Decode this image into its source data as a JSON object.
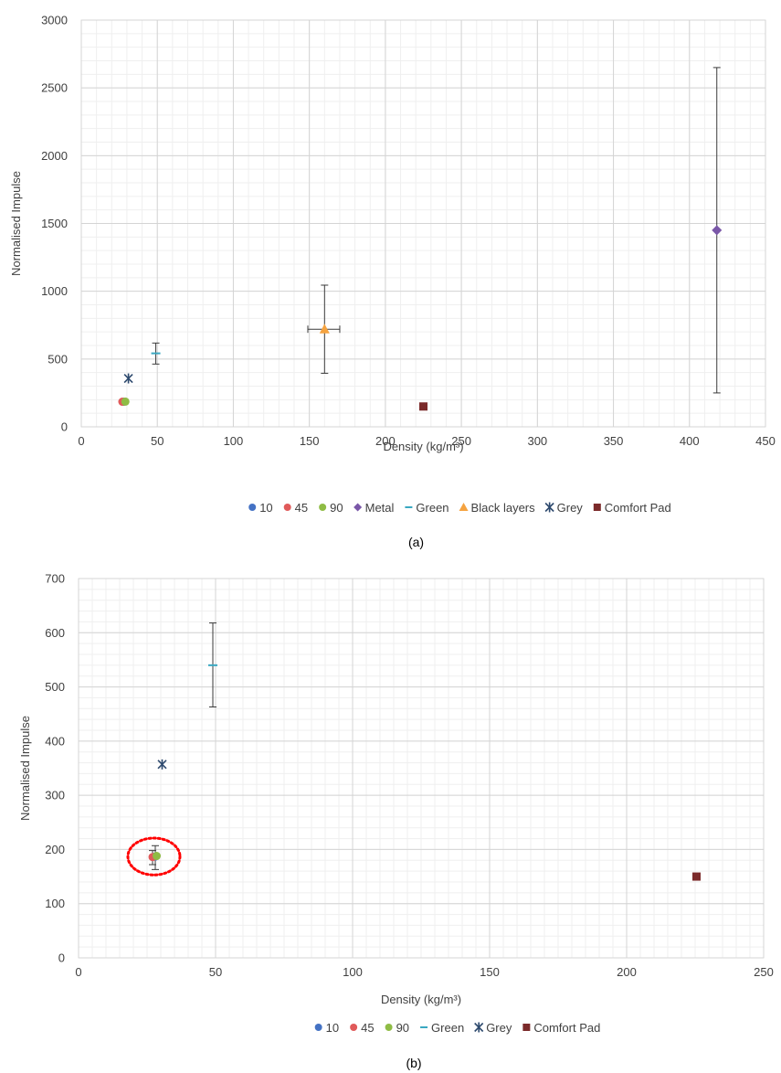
{
  "chart_data": [
    {
      "type": "scatter",
      "title": "",
      "caption": "(a)",
      "xlabel": "Density (kg/m³)",
      "ylabel": "Normalised Impulse",
      "xlim": [
        0,
        450
      ],
      "ylim": [
        0,
        3000
      ],
      "xticks": [
        0,
        50,
        100,
        150,
        200,
        250,
        300,
        350,
        400,
        450
      ],
      "yticks": [
        0,
        500,
        1000,
        1500,
        2000,
        2500,
        3000
      ],
      "grid": true,
      "legend_position": "bottom",
      "series": [
        {
          "name": "10",
          "marker": "circle",
          "color": "#4472c4",
          "points": [
            {
              "x": 28,
              "y": 185
            }
          ]
        },
        {
          "name": "45",
          "marker": "circle",
          "color": "#e05a5a",
          "points": [
            {
              "x": 27,
              "y": 185
            }
          ]
        },
        {
          "name": "90",
          "marker": "circle",
          "color": "#8fbc45",
          "points": [
            {
              "x": 29,
              "y": 186
            }
          ]
        },
        {
          "name": "Metal",
          "marker": "diamond",
          "color": "#7a57a8",
          "points": [
            {
              "x": 418,
              "y": 1450,
              "y_low": 250,
              "y_high": 2650
            }
          ]
        },
        {
          "name": "Green",
          "marker": "dash",
          "color": "#3aa8c1",
          "points": [
            {
              "x": 49,
              "y": 542,
              "y_low": 463,
              "y_high": 618
            }
          ]
        },
        {
          "name": "Black layers",
          "marker": "triangle",
          "color": "#f5a340",
          "points": [
            {
              "x": 160,
              "y": 720,
              "y_low": 395,
              "y_high": 1045,
              "x_low": 149,
              "x_high": 170
            }
          ]
        },
        {
          "name": "Grey",
          "marker": "star",
          "color": "#2e4a6e",
          "points": [
            {
              "x": 31,
              "y": 357
            }
          ]
        },
        {
          "name": "Comfort Pad",
          "marker": "square",
          "color": "#7b2a2a",
          "points": [
            {
              "x": 225,
              "y": 150
            }
          ]
        }
      ]
    },
    {
      "type": "scatter",
      "title": "",
      "caption": "(b)",
      "xlabel": "Density (kg/m³)",
      "ylabel": "Normalised Impulse",
      "xlim": [
        0,
        250
      ],
      "ylim": [
        0,
        700
      ],
      "xticks": [
        0,
        50,
        100,
        150,
        200,
        250
      ],
      "yticks": [
        0,
        100,
        200,
        300,
        400,
        500,
        600,
        700
      ],
      "grid": true,
      "legend_position": "bottom",
      "annotation": {
        "type": "dotted-ellipse",
        "color": "#ff0000",
        "cx": 27.5,
        "cy": 187,
        "rx": 9.5,
        "ry": 34
      },
      "series": [
        {
          "name": "10",
          "marker": "circle",
          "color": "#4472c4",
          "points": [
            {
              "x": 28,
              "y": 187,
              "y_low": 163,
              "y_high": 207
            }
          ]
        },
        {
          "name": "45",
          "marker": "circle",
          "color": "#e05a5a",
          "points": [
            {
              "x": 27,
              "y": 186,
              "y_low": 172,
              "y_high": 198
            }
          ]
        },
        {
          "name": "90",
          "marker": "circle",
          "color": "#8fbc45",
          "points": [
            {
              "x": 28.5,
              "y": 188
            }
          ]
        },
        {
          "name": "Green",
          "marker": "dash",
          "color": "#3aa8c1",
          "points": [
            {
              "x": 49,
              "y": 540,
              "y_low": 463,
              "y_high": 618
            }
          ]
        },
        {
          "name": "Grey",
          "marker": "star",
          "color": "#2e4a6e",
          "points": [
            {
              "x": 30.5,
              "y": 357
            }
          ]
        },
        {
          "name": "Comfort Pad",
          "marker": "square",
          "color": "#7b2a2a",
          "points": [
            {
              "x": 225.5,
              "y": 150
            }
          ]
        }
      ]
    }
  ]
}
